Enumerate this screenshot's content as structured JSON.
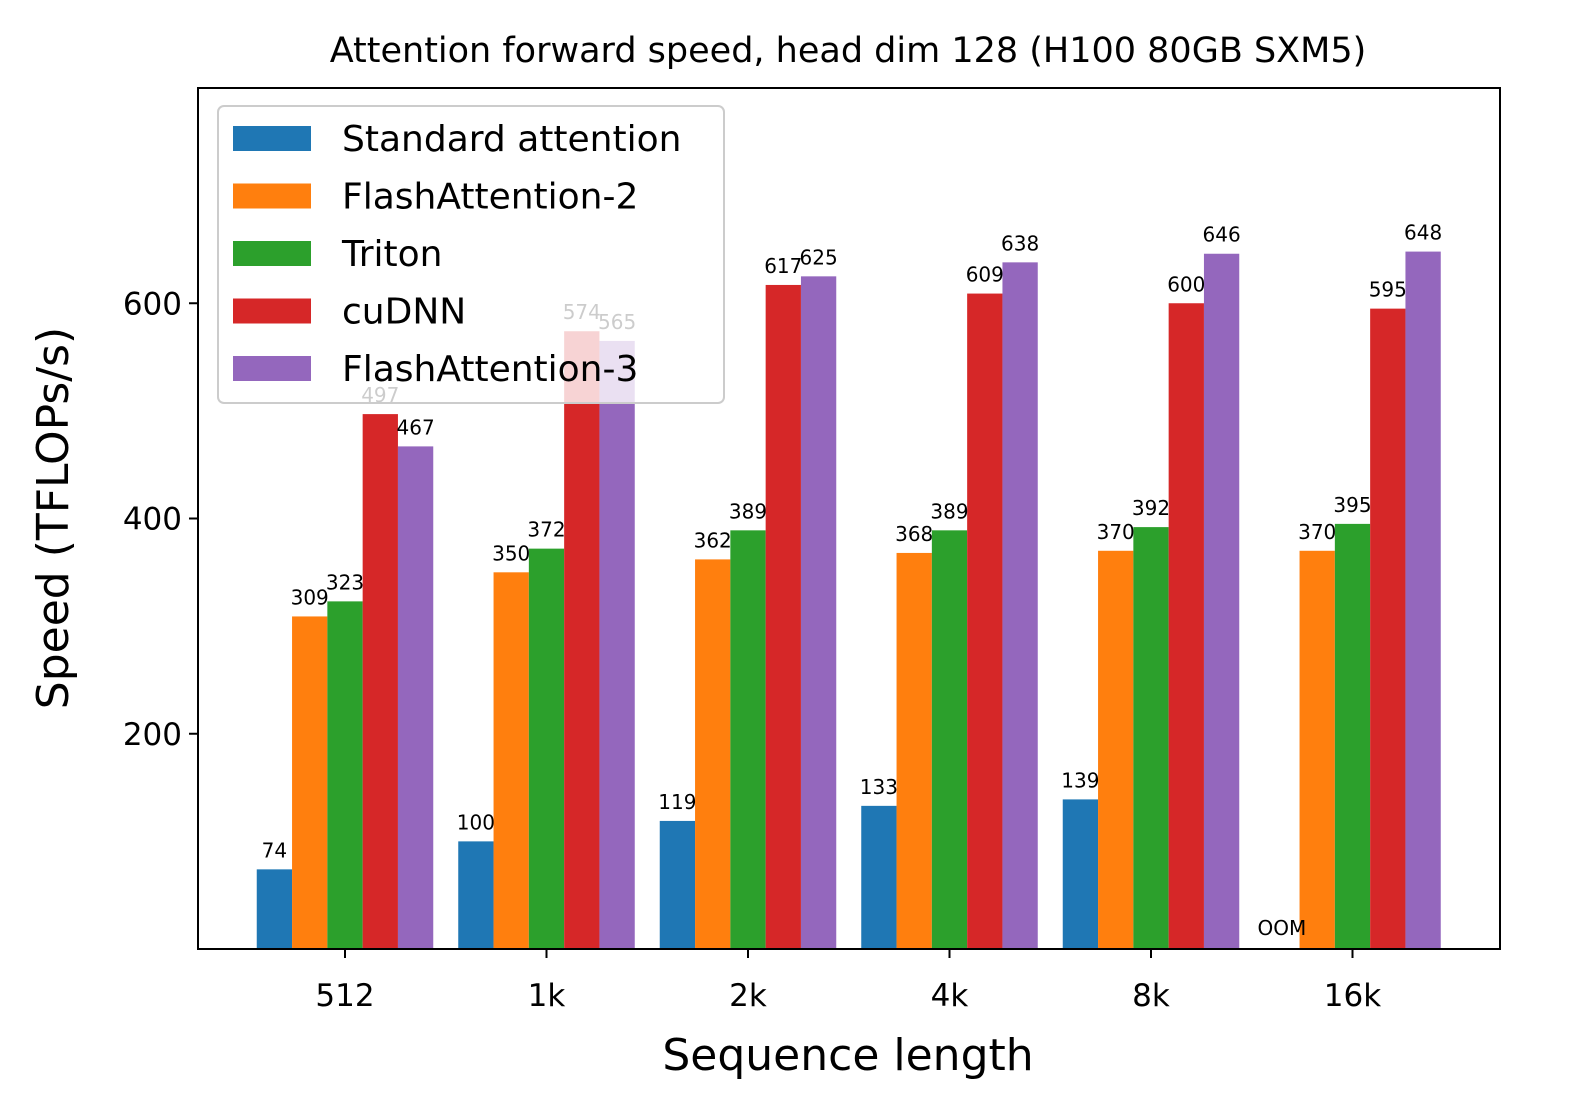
{
  "chart_data": {
    "type": "bar",
    "title": "Attention forward speed, head dim 128 (H100 80GB SXM5)",
    "xlabel": "Sequence length",
    "ylabel": "Speed (TFLOPs/s)",
    "categories": [
      "512",
      "1k",
      "2k",
      "4k",
      "8k",
      "16k"
    ],
    "ylim": [
      0,
      800
    ],
    "yticks": [
      200,
      400,
      600
    ],
    "legend_position": "top-left",
    "series": [
      {
        "name": "Standard attention",
        "color": "#1f77b4",
        "values": [
          74,
          100,
          119,
          133,
          139,
          null
        ],
        "labels": [
          "74",
          "100",
          "119",
          "133",
          "139",
          "OOM"
        ]
      },
      {
        "name": "FlashAttention-2",
        "color": "#ff7f0e",
        "values": [
          309,
          350,
          362,
          368,
          370,
          370
        ],
        "labels": [
          "309",
          "350",
          "362",
          "368",
          "370",
          "370"
        ]
      },
      {
        "name": "Triton",
        "color": "#2ca02c",
        "values": [
          323,
          372,
          389,
          389,
          392,
          395
        ],
        "labels": [
          "323",
          "372",
          "389",
          "389",
          "392",
          "395"
        ]
      },
      {
        "name": "cuDNN",
        "color": "#d62728",
        "values": [
          497,
          574,
          617,
          609,
          600,
          595
        ],
        "labels": [
          "497",
          "574",
          "617",
          "609",
          "600",
          "595"
        ]
      },
      {
        "name": "FlashAttention-3",
        "color": "#9467bd",
        "values": [
          467,
          565,
          625,
          638,
          646,
          648
        ],
        "labels": [
          "467",
          "565",
          "625",
          "638",
          "646",
          "648"
        ]
      }
    ]
  }
}
